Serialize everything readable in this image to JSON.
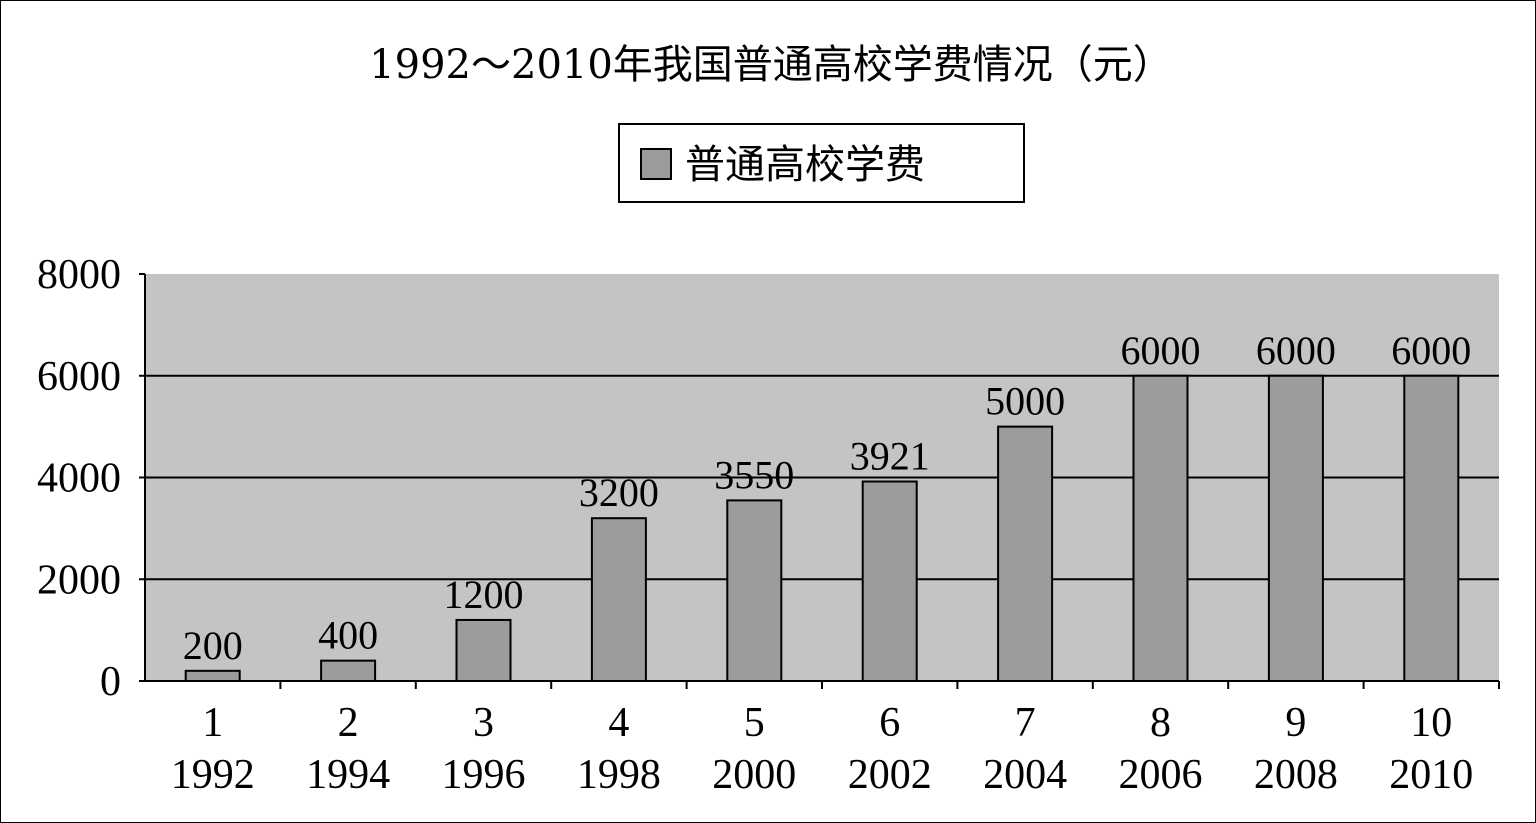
{
  "chart_data": {
    "type": "bar",
    "title": "1992～2010年我国普通高校学费情况（元）",
    "legend": {
      "placement": "top-center",
      "entries": [
        "普通高校学费"
      ]
    },
    "categories": [
      "1992",
      "1994",
      "1996",
      "1998",
      "2000",
      "2002",
      "2004",
      "2006",
      "2008",
      "2010"
    ],
    "category_index": [
      "1",
      "2",
      "3",
      "4",
      "5",
      "6",
      "7",
      "8",
      "9",
      "10"
    ],
    "series": [
      {
        "name": "普通高校学费",
        "values": [
          200,
          400,
          1200,
          3200,
          3550,
          3921,
          5000,
          6000,
          6000,
          6000
        ]
      }
    ],
    "ylim": [
      0,
      8000
    ],
    "yticks": [
      0,
      2000,
      4000,
      6000,
      8000
    ],
    "grid": true,
    "colors": {
      "plot_bg": "#c4c4c4",
      "bar": "#9c9c9c",
      "bar_edge": "#000000",
      "grid": "#000000"
    }
  }
}
